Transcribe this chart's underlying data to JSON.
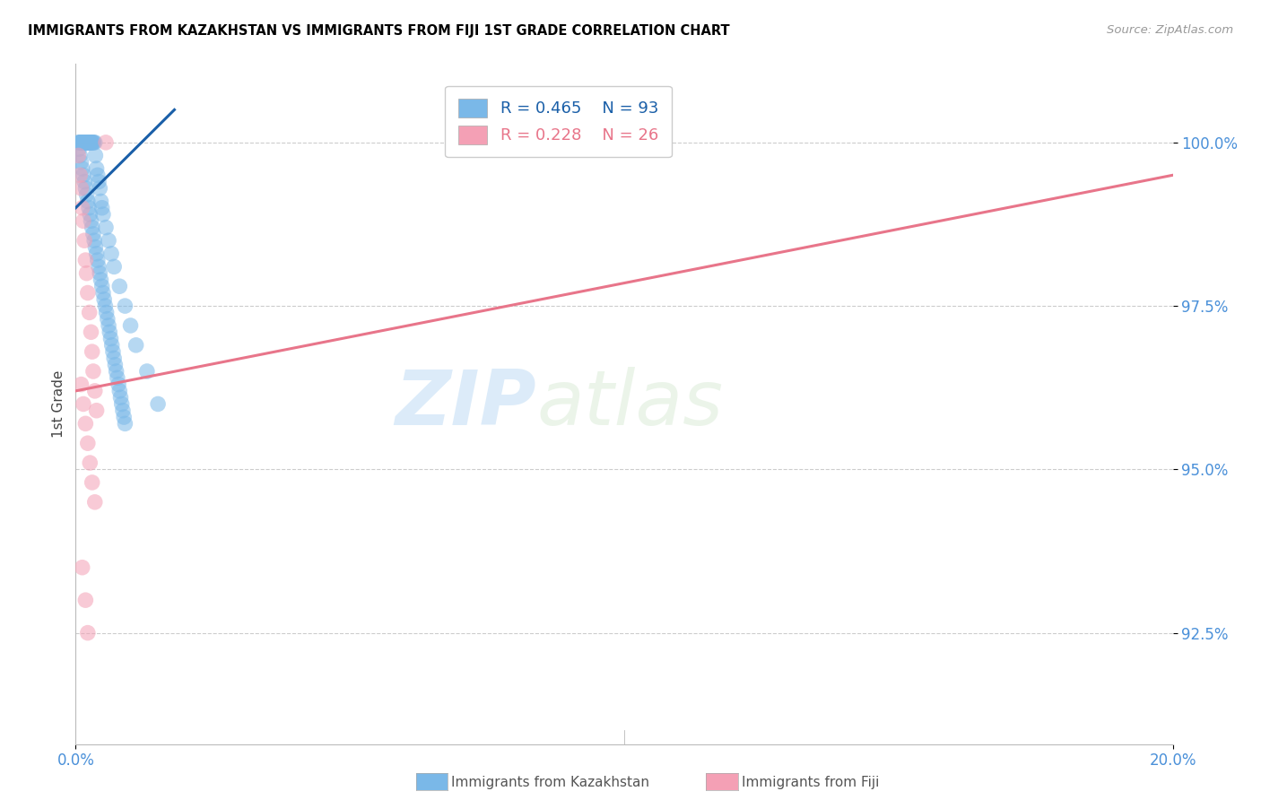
{
  "title": "IMMIGRANTS FROM KAZAKHSTAN VS IMMIGRANTS FROM FIJI 1ST GRADE CORRELATION CHART",
  "source": "Source: ZipAtlas.com",
  "ylabel": "1st Grade",
  "yticks": [
    92.5,
    95.0,
    97.5,
    100.0
  ],
  "ytick_labels": [
    "92.5%",
    "95.0%",
    "97.5%",
    "100.0%"
  ],
  "xlim": [
    0.0,
    20.0
  ],
  "ylim": [
    90.8,
    101.2
  ],
  "legend_kaz_R": "R = 0.465",
  "legend_kaz_N": "N = 93",
  "legend_fiji_R": "R = 0.228",
  "legend_fiji_N": "N = 26",
  "color_kaz": "#7ab8e8",
  "color_fiji": "#f4a0b5",
  "color_kaz_line": "#1a5fa8",
  "color_fiji_line": "#e8758a",
  "color_ticks": "#4a90d9",
  "watermark_zip": "ZIP",
  "watermark_atlas": "atlas",
  "kaz_x": [
    0.05,
    0.07,
    0.08,
    0.09,
    0.1,
    0.1,
    0.11,
    0.12,
    0.13,
    0.14,
    0.15,
    0.15,
    0.16,
    0.17,
    0.18,
    0.19,
    0.2,
    0.2,
    0.21,
    0.22,
    0.23,
    0.24,
    0.25,
    0.25,
    0.26,
    0.27,
    0.28,
    0.3,
    0.3,
    0.32,
    0.33,
    0.35,
    0.36,
    0.38,
    0.4,
    0.42,
    0.44,
    0.46,
    0.48,
    0.5,
    0.55,
    0.6,
    0.65,
    0.7,
    0.8,
    0.9,
    1.0,
    1.1,
    1.3,
    1.5,
    0.06,
    0.08,
    0.1,
    0.12,
    0.14,
    0.16,
    0.18,
    0.2,
    0.22,
    0.24,
    0.26,
    0.28,
    0.3,
    0.32,
    0.34,
    0.36,
    0.38,
    0.4,
    0.42,
    0.44,
    0.46,
    0.48,
    0.5,
    0.52,
    0.54,
    0.56,
    0.58,
    0.6,
    0.62,
    0.64,
    0.66,
    0.68,
    0.7,
    0.72,
    0.74,
    0.76,
    0.78,
    0.8,
    0.82,
    0.84,
    0.86,
    0.88,
    0.9
  ],
  "kaz_y": [
    100.0,
    100.0,
    100.0,
    100.0,
    100.0,
    100.0,
    100.0,
    100.0,
    100.0,
    100.0,
    100.0,
    100.0,
    100.0,
    100.0,
    100.0,
    100.0,
    100.0,
    100.0,
    100.0,
    100.0,
    100.0,
    100.0,
    100.0,
    100.0,
    100.0,
    100.0,
    100.0,
    100.0,
    100.0,
    100.0,
    100.0,
    100.0,
    99.8,
    99.6,
    99.5,
    99.4,
    99.3,
    99.1,
    99.0,
    98.9,
    98.7,
    98.5,
    98.3,
    98.1,
    97.8,
    97.5,
    97.2,
    96.9,
    96.5,
    96.0,
    99.9,
    99.8,
    99.7,
    99.6,
    99.5,
    99.4,
    99.3,
    99.2,
    99.1,
    99.0,
    98.9,
    98.8,
    98.7,
    98.6,
    98.5,
    98.4,
    98.3,
    98.2,
    98.1,
    98.0,
    97.9,
    97.8,
    97.7,
    97.6,
    97.5,
    97.4,
    97.3,
    97.2,
    97.1,
    97.0,
    96.9,
    96.8,
    96.7,
    96.6,
    96.5,
    96.4,
    96.3,
    96.2,
    96.1,
    96.0,
    95.9,
    95.8,
    95.7
  ],
  "fiji_x": [
    0.05,
    0.08,
    0.1,
    0.12,
    0.14,
    0.16,
    0.18,
    0.2,
    0.22,
    0.25,
    0.28,
    0.3,
    0.32,
    0.35,
    0.38,
    0.1,
    0.14,
    0.18,
    0.22,
    0.26,
    0.3,
    0.35,
    0.55,
    0.12,
    0.18,
    0.22
  ],
  "fiji_y": [
    99.8,
    99.5,
    99.3,
    99.0,
    98.8,
    98.5,
    98.2,
    98.0,
    97.7,
    97.4,
    97.1,
    96.8,
    96.5,
    96.2,
    95.9,
    96.3,
    96.0,
    95.7,
    95.4,
    95.1,
    94.8,
    94.5,
    100.0,
    93.5,
    93.0,
    92.5
  ],
  "kaz_trendline_x": [
    0.0,
    1.8
  ],
  "kaz_trendline_y": [
    99.0,
    100.5
  ],
  "fiji_trendline_x": [
    0.0,
    20.0
  ],
  "fiji_trendline_y": [
    96.2,
    99.5
  ]
}
